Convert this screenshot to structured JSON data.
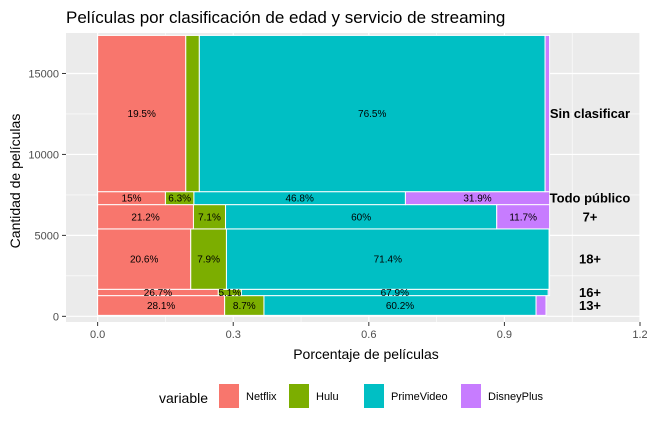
{
  "chart_data": {
    "type": "bar",
    "title": "Películas por clasificación de edad y servicio de streaming",
    "xlabel": "Porcentaje de películas",
    "ylabel": "Cantidad de películas",
    "xlim": [
      -0.07,
      1.2
    ],
    "ylim": [
      -350,
      17500
    ],
    "x_ticks": [
      0.0,
      0.3,
      0.6,
      0.9,
      1.2
    ],
    "x_tick_labels": [
      "0.0",
      "0.3",
      "0.6",
      "0.9",
      "1.2"
    ],
    "y_ticks": [
      0,
      5000,
      10000,
      15000
    ],
    "y_tick_labels": [
      "0",
      "5000",
      "10000",
      "15000"
    ],
    "grid": true,
    "legend": {
      "title": "variable",
      "position": "bottom",
      "entries": [
        "Netflix",
        "Hulu",
        "PrimeVideo",
        "DisneyPlus"
      ]
    },
    "series_colors": {
      "Netflix": "#F8766D",
      "Hulu": "#7CAE00",
      "PrimeVideo": "#00BFC4",
      "DisneyPlus": "#C77CFF"
    },
    "series": [
      "Netflix",
      "Hulu",
      "PrimeVideo",
      "DisneyPlus"
    ],
    "categories": [
      {
        "name": "13+",
        "ymin": 60,
        "ymax": 1280,
        "shares": [
          0.281,
          0.087,
          0.602,
          0.022
        ],
        "labels": [
          "28.1%",
          "8.7%",
          "60.2%",
          ""
        ]
      },
      {
        "name": "16+",
        "ymin": 1280,
        "ymax": 1670,
        "shares": [
          0.267,
          0.051,
          0.679,
          0.003
        ],
        "labels": [
          "26.7%",
          "5.1%",
          "67.9%",
          ""
        ]
      },
      {
        "name": "18+",
        "ymin": 1670,
        "ymax": 5400,
        "shares": [
          0.206,
          0.079,
          0.714,
          0.001
        ],
        "labels": [
          "20.6%",
          "7.9%",
          "71.4%",
          ""
        ]
      },
      {
        "name": "7+",
        "ymin": 5400,
        "ymax": 6900,
        "shares": [
          0.212,
          0.071,
          0.6,
          0.117
        ],
        "labels": [
          "21.2%",
          "7.1%",
          "60%",
          "11.7%"
        ]
      },
      {
        "name": "Todo público",
        "ymin": 6900,
        "ymax": 7700,
        "shares": [
          0.15,
          0.063,
          0.468,
          0.319
        ],
        "labels": [
          "15%",
          "6.3%",
          "46.8%",
          "31.9%"
        ]
      },
      {
        "name": "Sin clasificar",
        "ymin": 7700,
        "ymax": 17350,
        "shares": [
          0.195,
          0.03,
          0.765,
          0.01
        ],
        "labels": [
          "19.5%",
          "",
          "76.5%",
          ""
        ]
      }
    ]
  }
}
